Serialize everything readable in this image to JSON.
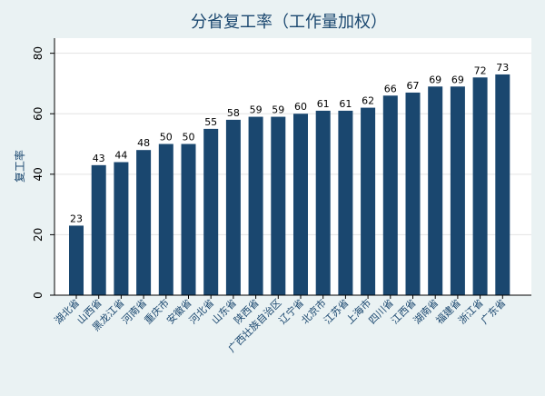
{
  "chart_data": {
    "type": "bar",
    "title": "分省复工率（工作量加权）",
    "xlabel": "",
    "ylabel": "复工率",
    "ylim": [
      0,
      85
    ],
    "yticks": [
      0,
      20,
      40,
      60,
      80
    ],
    "grid": true,
    "categories": [
      "湖北省",
      "山西省",
      "黑龙江省",
      "河南省",
      "重庆市",
      "安徽省",
      "河北省",
      "山东省",
      "陕西省",
      "广西壮族自治区",
      "辽宁省",
      "北京市",
      "江苏省",
      "上海市",
      "四川省",
      "江西省",
      "湖南省",
      "福建省",
      "浙江省",
      "广东省"
    ],
    "values": [
      23,
      43,
      44,
      48,
      50,
      50,
      55,
      58,
      59,
      59,
      60,
      61,
      61,
      62,
      66,
      67,
      69,
      69,
      72,
      73
    ],
    "colors": {
      "bar": "#1a476f",
      "background": "#eaf2f3",
      "plot_background": "#ffffff"
    }
  }
}
